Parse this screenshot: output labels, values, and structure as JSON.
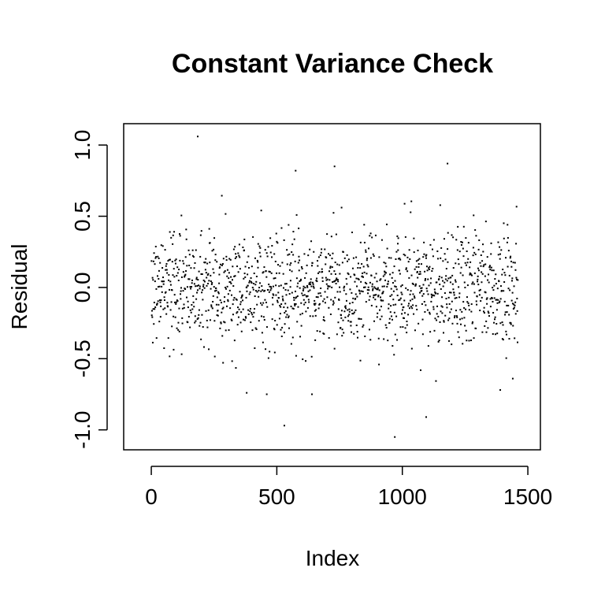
{
  "chart_data": {
    "type": "scatter",
    "title": "Constant Variance Check",
    "xlabel": "Index",
    "ylabel": "Residual",
    "xlim": [
      -110,
      1550
    ],
    "ylim": [
      -1.14,
      1.15
    ],
    "grid": false,
    "legend": "none",
    "x_ticks": [
      {
        "value": 0,
        "label": "0"
      },
      {
        "value": 500,
        "label": "500"
      },
      {
        "value": 1000,
        "label": "1000"
      },
      {
        "value": 1500,
        "label": "1500"
      }
    ],
    "y_ticks": [
      {
        "value": -1.0,
        "label": "-1.0"
      },
      {
        "value": -0.5,
        "label": "-0.5"
      },
      {
        "value": 0.0,
        "label": "0.0"
      },
      {
        "value": 0.5,
        "label": "0.5"
      },
      {
        "value": 1.0,
        "label": "1.0"
      }
    ],
    "point_color": "#000000",
    "n_points": 1460,
    "notable_points": [
      {
        "x": 185,
        "y": 1.06
      },
      {
        "x": 575,
        "y": 0.82
      },
      {
        "x": 730,
        "y": 0.85
      },
      {
        "x": 1180,
        "y": 0.87
      },
      {
        "x": 530,
        "y": -0.97
      },
      {
        "x": 970,
        "y": -1.05
      },
      {
        "x": 1095,
        "y": -0.91
      },
      {
        "x": 380,
        "y": -0.74
      },
      {
        "x": 460,
        "y": -0.75
      },
      {
        "x": 640,
        "y": -0.75
      },
      {
        "x": 1390,
        "y": -0.72
      },
      {
        "x": 1440,
        "y": -0.64
      }
    ],
    "series_band_sd": 0.2
  }
}
